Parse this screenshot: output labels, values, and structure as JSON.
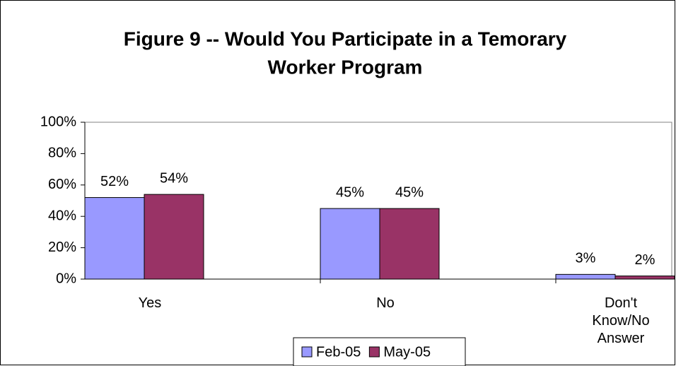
{
  "chart_data": {
    "type": "bar",
    "title": [
      "Figure 9 -- Would You Participate in a Temorary",
      "Worker Program"
    ],
    "categories": [
      "Yes",
      "No",
      "Don't Know/No Answer"
    ],
    "series": [
      {
        "name": "Feb-05",
        "color": "#9999ff",
        "values": [
          52,
          45,
          3
        ],
        "value_labels": [
          "52%",
          "45%",
          "3%"
        ]
      },
      {
        "name": "May-05",
        "color": "#993366",
        "values": [
          54,
          45,
          2
        ],
        "value_labels": [
          "54%",
          "45%",
          "2%"
        ]
      }
    ],
    "ylim": [
      0,
      100
    ],
    "yticks": [
      {
        "value": 0,
        "label": "0%"
      },
      {
        "value": 20,
        "label": "20%"
      },
      {
        "value": 40,
        "label": "40%"
      },
      {
        "value": 60,
        "label": "60%"
      },
      {
        "value": 80,
        "label": "80%"
      },
      {
        "value": 100,
        "label": "100%"
      }
    ],
    "legend": "bottom"
  }
}
